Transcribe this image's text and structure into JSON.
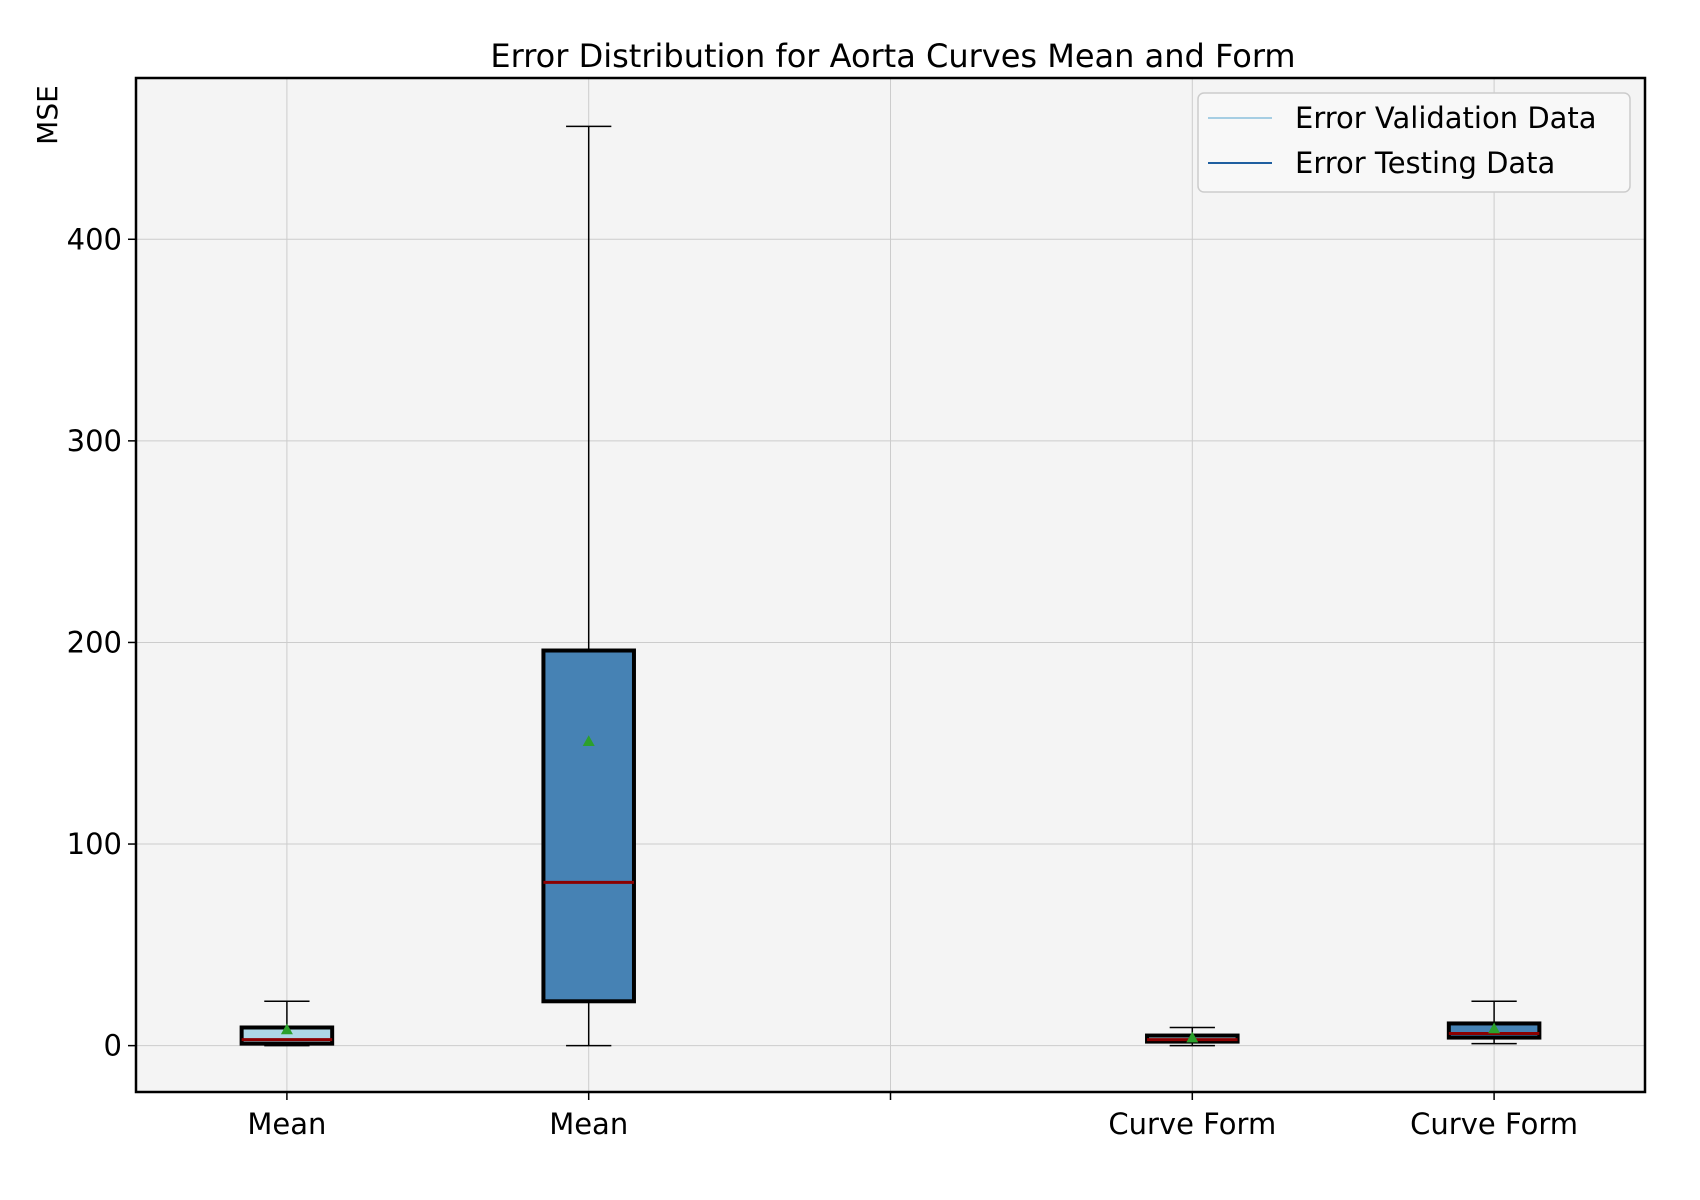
{
  "chart_data": {
    "type": "box",
    "title": "Error Distribution for Aorta Curves Mean and Form",
    "xlabel": "",
    "ylabel": "MSE",
    "ylim": [
      -23,
      480
    ],
    "yticks": [
      0,
      100,
      200,
      300,
      400
    ],
    "grid": true,
    "legend_position": "top-right",
    "legend": [
      {
        "label": "Error Validation Data",
        "color": "#a6cee3"
      },
      {
        "label": "Error Testing Data",
        "color": "#1f5fa0"
      }
    ],
    "x_ticks": [
      {
        "position": 1,
        "label": "Mean"
      },
      {
        "position": 2,
        "label": "Mean"
      },
      {
        "position": 3,
        "label": ""
      },
      {
        "position": 4,
        "label": "Curve Form"
      },
      {
        "position": 5,
        "label": "Curve Form"
      }
    ],
    "boxes": [
      {
        "position": 1,
        "label": "Mean",
        "series": "Error Validation Data",
        "whisker_low": 0,
        "q1": 1,
        "median": 3,
        "q3": 9,
        "whisker_high": 22,
        "mean": 8,
        "fill": "#add8e6"
      },
      {
        "position": 2,
        "label": "Mean",
        "series": "Error Testing Data",
        "whisker_low": 0,
        "q1": 22,
        "median": 81,
        "q3": 196,
        "whisker_high": 456,
        "mean": 151,
        "fill": "#4682b4"
      },
      {
        "position": 4,
        "label": "Curve Form",
        "series": "Error Validation Data",
        "whisker_low": 0,
        "q1": 2,
        "median": 3,
        "q3": 5,
        "whisker_high": 9,
        "mean": 4,
        "fill": "#add8e6"
      },
      {
        "position": 5,
        "label": "Curve Form",
        "series": "Error Testing Data",
        "whisker_low": 1,
        "q1": 4,
        "median": 6,
        "q3": 11,
        "whisker_high": 22,
        "mean": 8.5,
        "fill": "#4682b4"
      }
    ],
    "colors": {
      "background": "#f4f4f4",
      "grid": "#cccccc",
      "median": "#8b0000",
      "mean_marker": "#2ca02c",
      "box_edge": "#000000"
    }
  }
}
